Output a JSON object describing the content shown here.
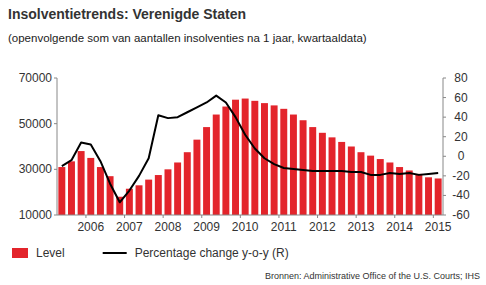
{
  "chart_data": {
    "type": "bar",
    "title": "Insolventietrends: Verenigde Staten",
    "subtitle": "(openvolgende som van aantallen insolventies na 1 jaar, kwartaaldata)",
    "source": "Bronnen: Administrative Office of the U.S. Courts; IHS",
    "categories": [
      null,
      null,
      null,
      "2006",
      null,
      null,
      null,
      "2007",
      null,
      null,
      null,
      "2008",
      null,
      null,
      null,
      "2009",
      null,
      null,
      null,
      "2010",
      null,
      null,
      null,
      "2011",
      null,
      null,
      null,
      "2012",
      null,
      null,
      null,
      "2013",
      null,
      null,
      null,
      "2014",
      null,
      null,
      null,
      "2015"
    ],
    "series": [
      {
        "name": "Level",
        "type": "bar",
        "color": "#e3242b",
        "values": [
          31000,
          33500,
          38000,
          35000,
          31000,
          27000,
          18000,
          21500,
          23000,
          25500,
          27500,
          30000,
          33000,
          37500,
          43000,
          48500,
          54000,
          57500,
          60500,
          61000,
          60000,
          59000,
          58000,
          56500,
          54000,
          51500,
          48500,
          46000,
          44000,
          42000,
          40000,
          37500,
          36000,
          34500,
          33000,
          31000,
          29500,
          28000,
          26500,
          26000
        ]
      },
      {
        "name": "Percentage change y-o-y (R)",
        "type": "line",
        "axis": "y2",
        "color": "#000000",
        "values": [
          -10,
          -4,
          14,
          12,
          -5,
          -28,
          -47,
          -35,
          -20,
          -2,
          42,
          39,
          40,
          45,
          50,
          55,
          62,
          55,
          40,
          22,
          8,
          -2,
          -8,
          -12,
          -13,
          -14,
          -15,
          -15,
          -15,
          -15,
          -16,
          -16,
          -19,
          -19,
          -17,
          -18,
          -17,
          -19,
          -18,
          -17
        ]
      }
    ],
    "ylim": [
      10000,
      70000
    ],
    "yticks": [
      10000,
      30000,
      50000,
      70000
    ],
    "y2lim": [
      -60,
      80
    ],
    "y2ticks": [
      -60,
      -40,
      -20,
      0,
      20,
      40,
      60,
      80
    ],
    "legend": "bottom",
    "grid": false
  }
}
